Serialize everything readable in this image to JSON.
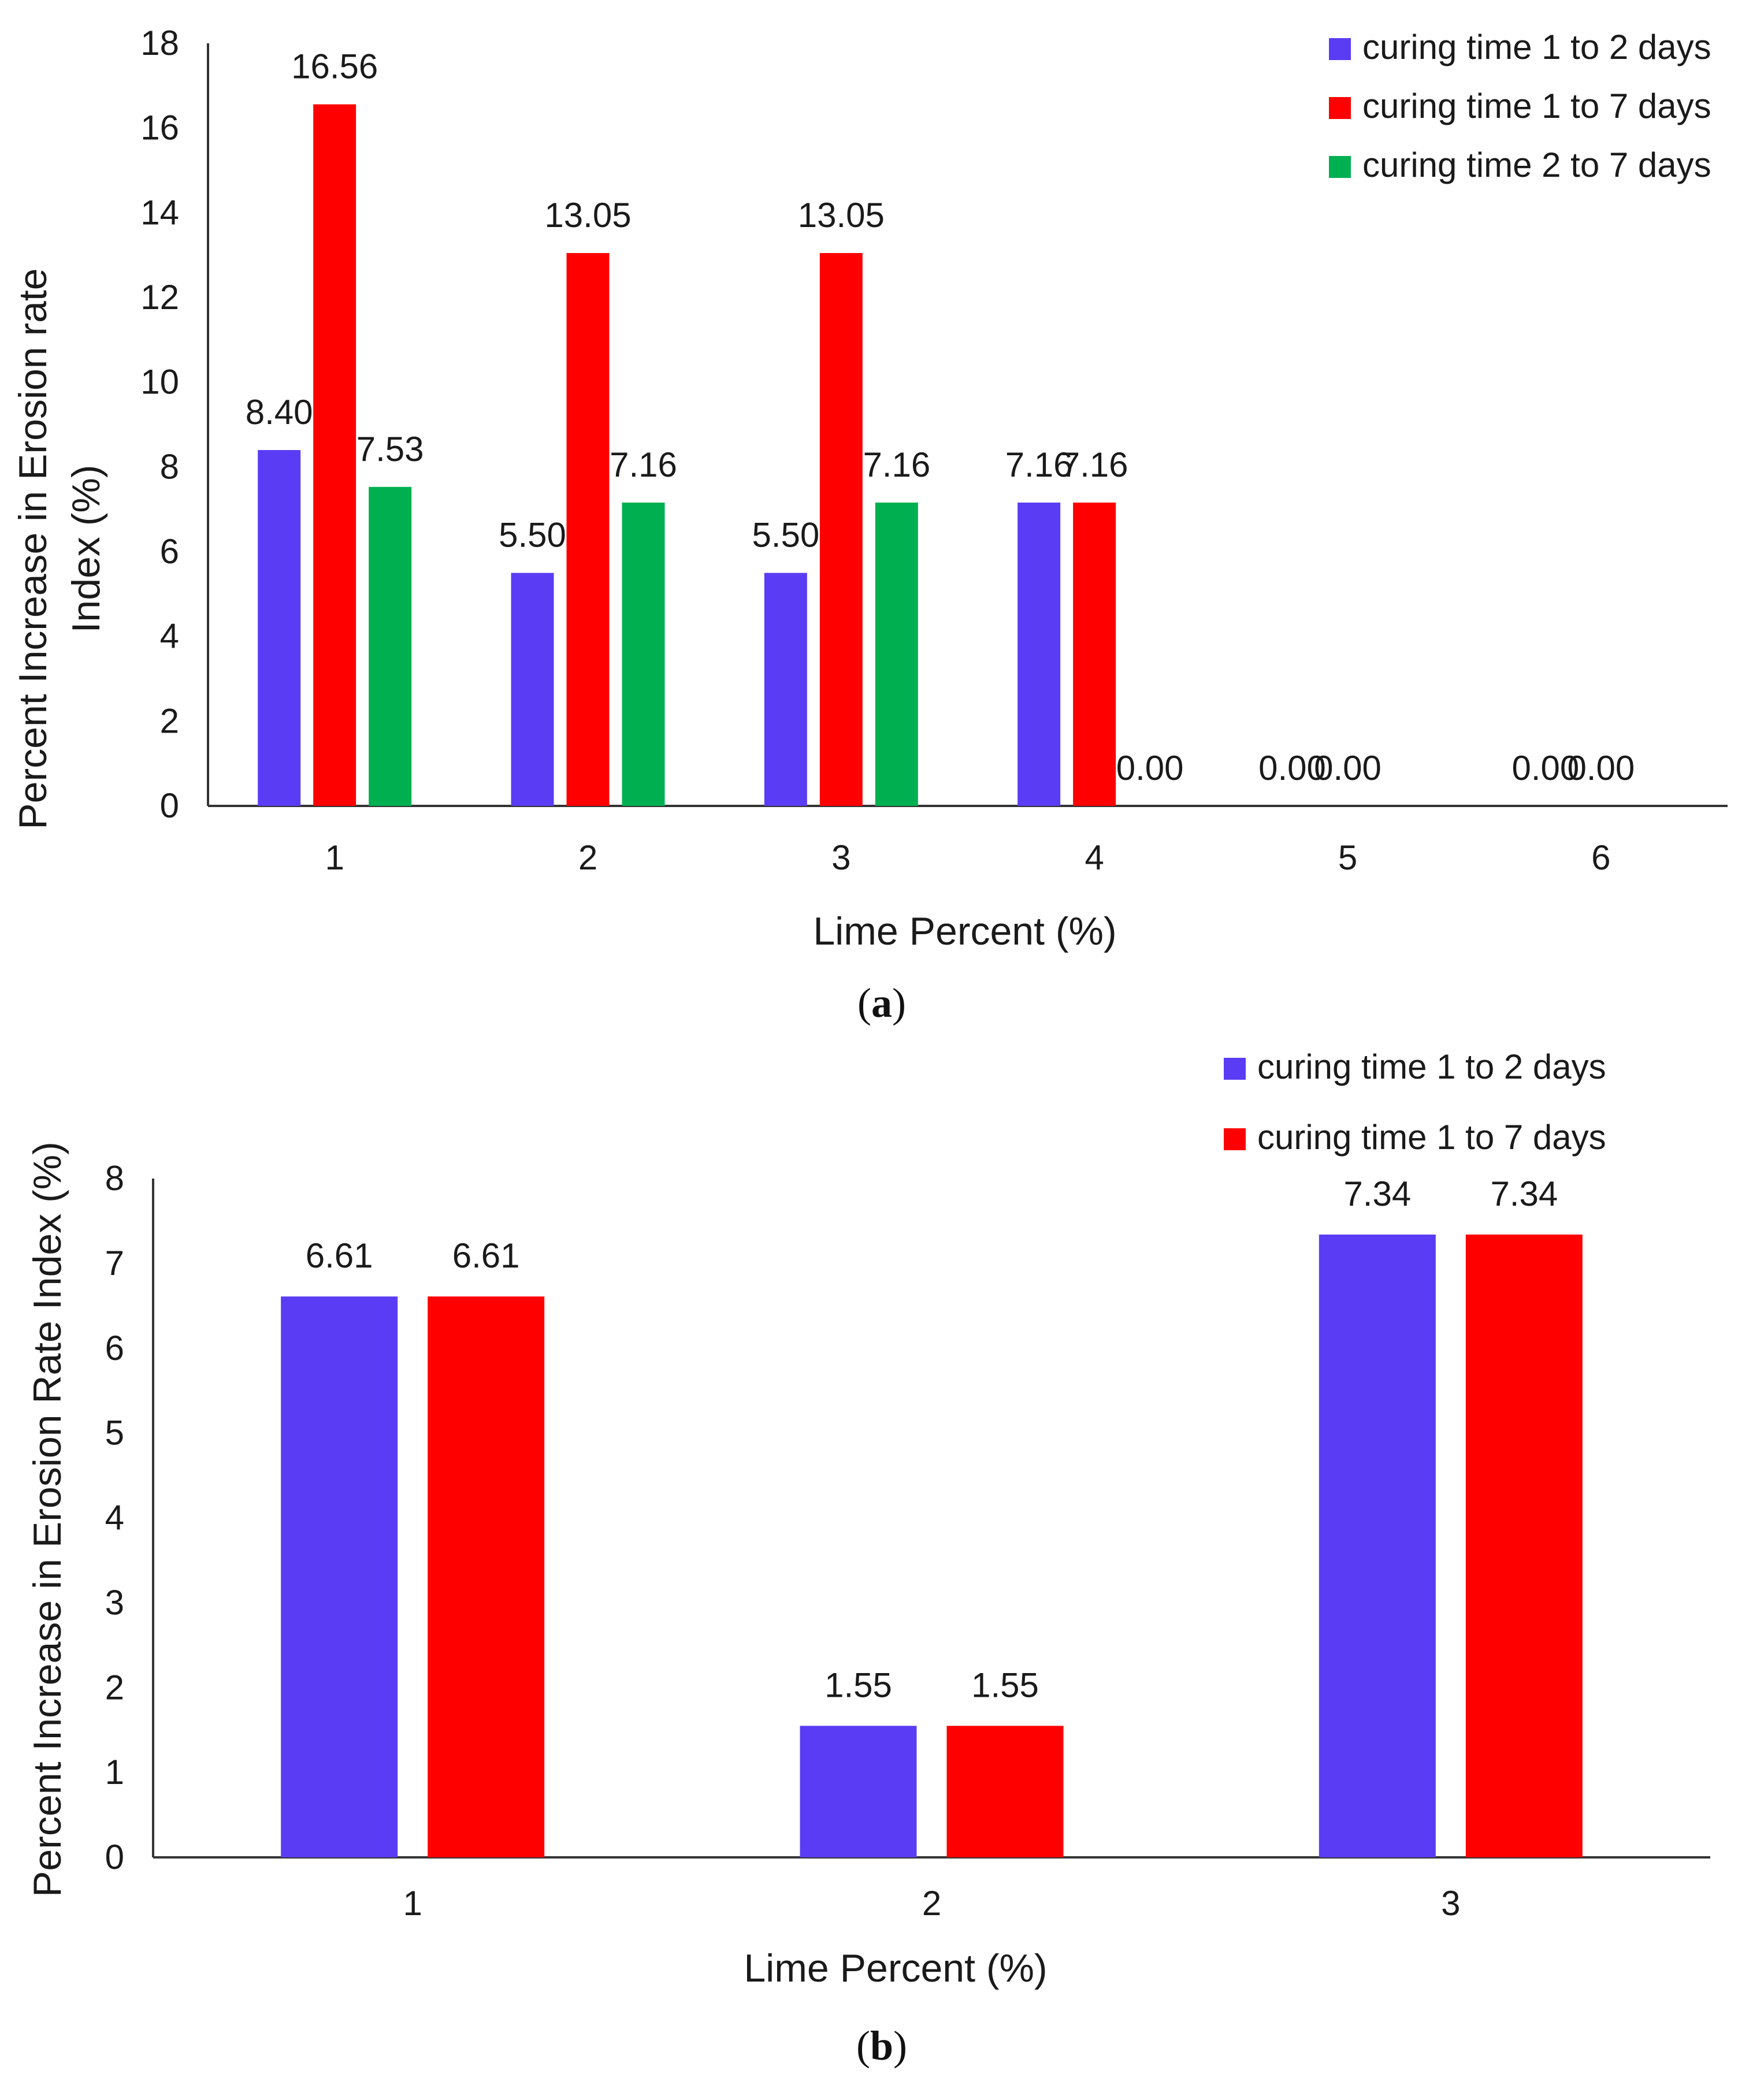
{
  "chart_data": [
    {
      "type": "bar",
      "panel": "a",
      "categories": [
        "1",
        "2",
        "3",
        "4",
        "5",
        "6"
      ],
      "series": [
        {
          "name": "curing time 1 to 2 days",
          "color": "#5b3cf5",
          "values": [
            8.4,
            5.5,
            5.5,
            7.16,
            0.0,
            0.0
          ]
        },
        {
          "name": "curing time 1 to 7 days",
          "color": "#ff0000",
          "values": [
            16.56,
            13.05,
            13.05,
            7.16,
            0.0,
            0.0
          ]
        },
        {
          "name": "curing time 2 to 7 days",
          "color": "#00b050",
          "values": [
            7.53,
            7.16,
            7.16,
            0.0,
            null,
            null
          ]
        }
      ],
      "data_labels": [
        [
          "8.40",
          "5.50",
          "5.50",
          "7.16",
          "0.00",
          "0.00"
        ],
        [
          "16.56",
          "13.05",
          "13.05",
          "7.16",
          "0.00",
          "0.00"
        ],
        [
          "7.53",
          "7.16",
          "7.16",
          "0.00",
          null,
          null
        ]
      ],
      "yticks": [
        "0",
        "2",
        "4",
        "6",
        "8",
        "10",
        "12",
        "14",
        "16",
        "18"
      ],
      "xlabel": "Lime Percent (%)",
      "ylabel_lines": [
        "Percent Increase in Erosion rate",
        "Index (%)"
      ],
      "ylim": [
        0,
        18
      ],
      "legend_position": "top-right",
      "grid": false
    },
    {
      "type": "bar",
      "panel": "b",
      "categories": [
        "1",
        "2",
        "3"
      ],
      "series": [
        {
          "name": "curing time 1 to 2 days",
          "color": "#5b3cf5",
          "values": [
            6.61,
            1.55,
            7.34
          ]
        },
        {
          "name": "curing time 1 to 7 days",
          "color": "#ff0000",
          "values": [
            6.61,
            1.55,
            7.34
          ]
        }
      ],
      "data_labels": [
        [
          "6.61",
          "1.55",
          "7.34"
        ],
        [
          "6.61",
          "1.55",
          "7.34"
        ]
      ],
      "yticks": [
        "0",
        "1",
        "2",
        "3",
        "4",
        "5",
        "6",
        "7",
        "8"
      ],
      "xlabel": "Lime Percent (%)",
      "ylabel_lines": [
        "Percent Increase in Erosion Rate Index (%)"
      ],
      "ylim": [
        0,
        8
      ],
      "legend_position": "top-right",
      "grid": false
    }
  ],
  "captions": {
    "a": {
      "open": "(",
      "letter": "a",
      "close": ")"
    },
    "b": {
      "open": "(",
      "letter": "b",
      "close": ")"
    }
  }
}
